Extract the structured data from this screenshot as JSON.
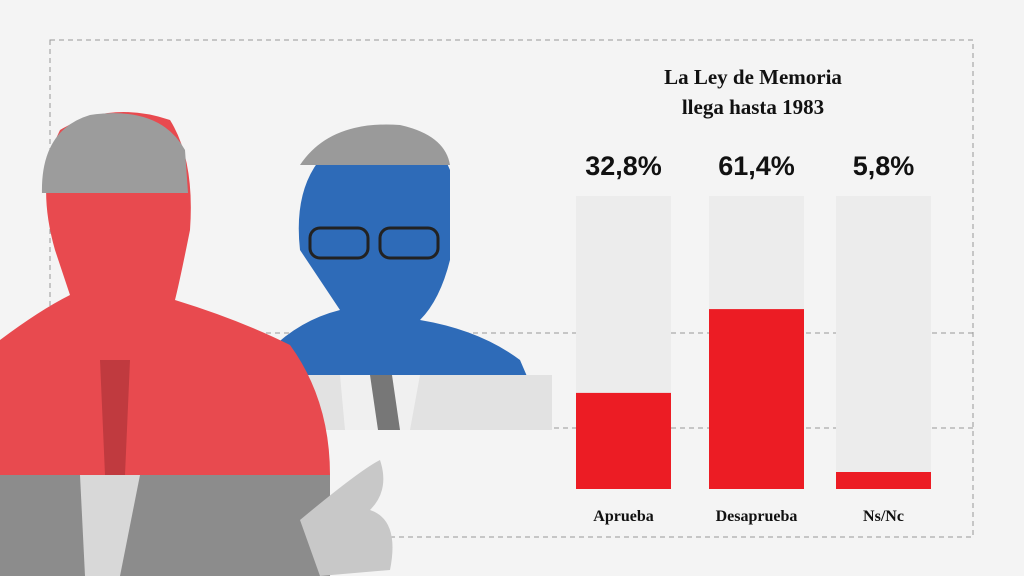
{
  "chart_data": {
    "type": "bar",
    "title": "La Ley de Memoria llega hasta 1983",
    "categories": [
      "Aprueba",
      "Desaprueba",
      "Ns/Nc"
    ],
    "values": [
      32.8,
      61.4,
      5.8
    ],
    "value_labels": [
      "32,8%",
      "61,4%",
      "5,8%"
    ],
    "color": "#ec1c24",
    "ylim": [
      0,
      100
    ]
  }
}
